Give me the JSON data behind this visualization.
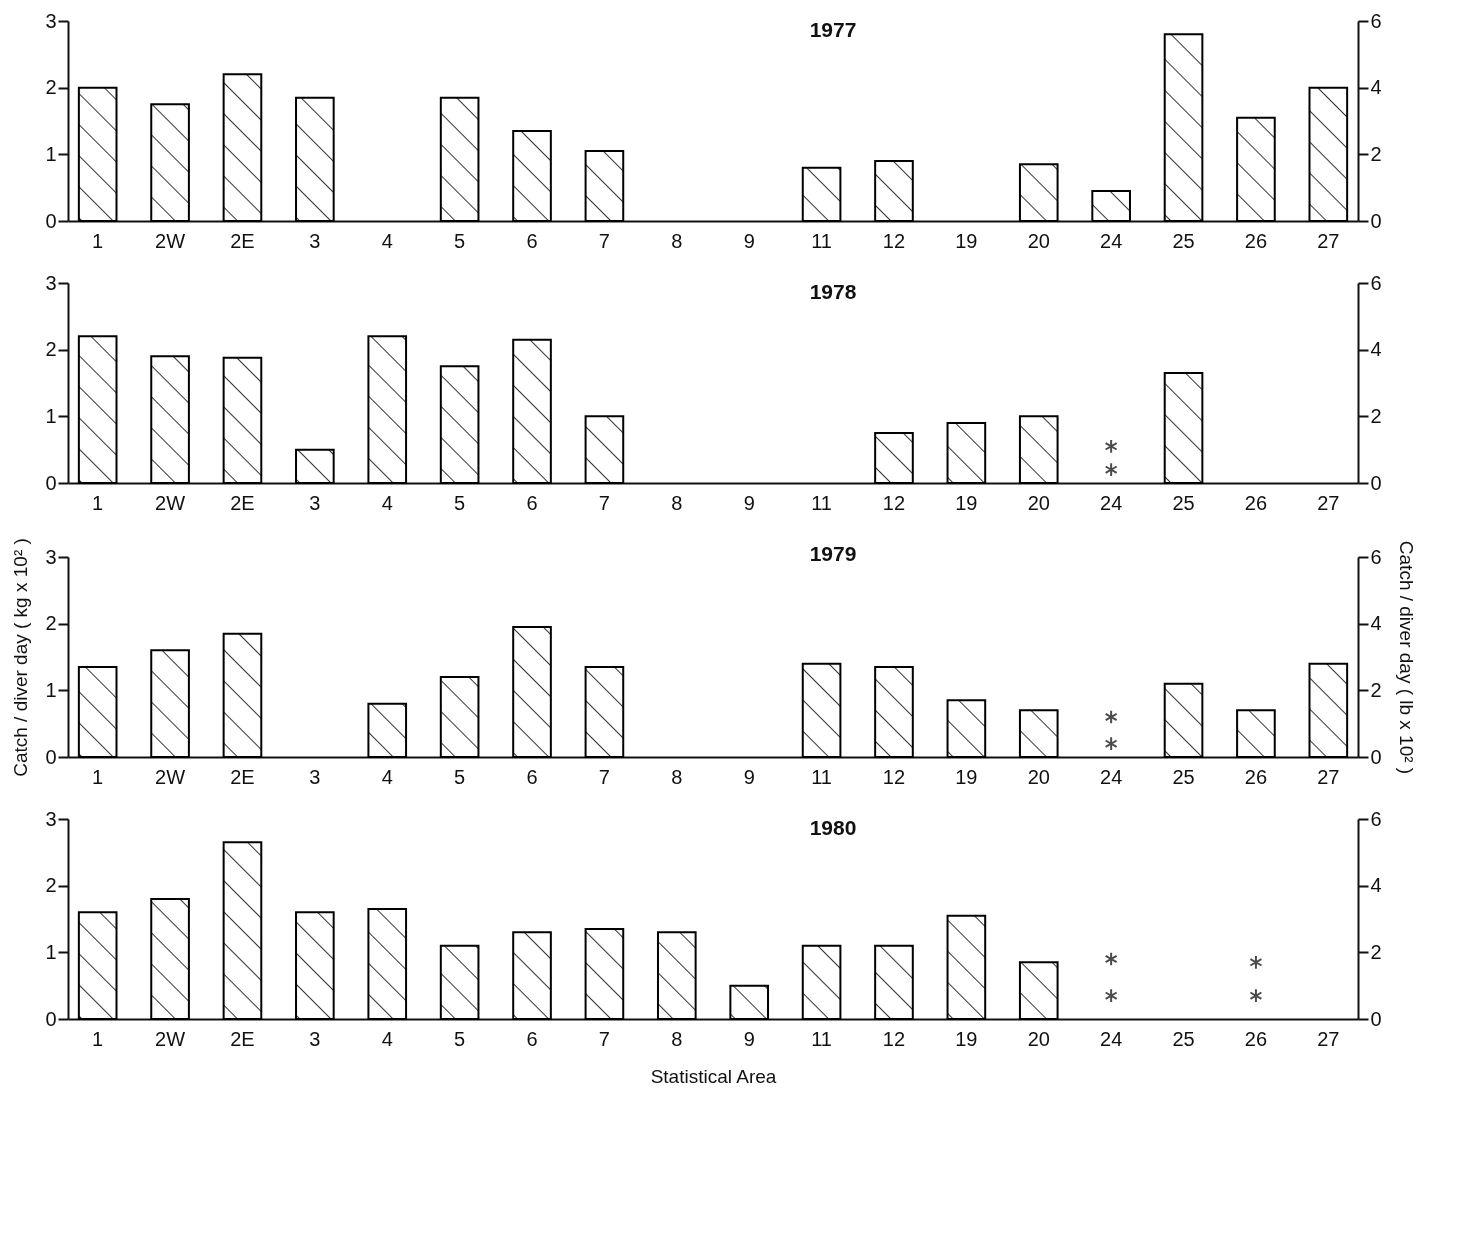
{
  "chart_data": [
    {
      "type": "bar",
      "title": "1977",
      "categories": [
        "1",
        "2W",
        "2E",
        "3",
        "4",
        "5",
        "6",
        "7",
        "8",
        "9",
        "11",
        "12",
        "19",
        "20",
        "24",
        "25",
        "26",
        "27"
      ],
      "series": [
        {
          "color": "#000000",
          "values": [
            2.0,
            1.75,
            2.2,
            1.85,
            null,
            1.85,
            1.35,
            1.05,
            null,
            null,
            0.8,
            0.9,
            null,
            0.85,
            0.45,
            2.8,
            1.55,
            2.0
          ]
        }
      ],
      "ylim": [
        0,
        3
      ],
      "yticks": [
        0,
        1,
        2,
        3
      ],
      "y2lim": [
        0,
        6
      ],
      "y2ticks": [
        0,
        2,
        4,
        6
      ]
    },
    {
      "type": "bar",
      "title": "1978",
      "categories": [
        "1",
        "2W",
        "2E",
        "3",
        "4",
        "5",
        "6",
        "7",
        "8",
        "9",
        "11",
        "12",
        "19",
        "20",
        "24",
        "25",
        "26",
        "27"
      ],
      "series": [
        {
          "color": "#000000",
          "values": [
            2.2,
            1.9,
            1.88,
            0.5,
            2.2,
            1.75,
            2.15,
            1.0,
            null,
            null,
            null,
            0.75,
            0.9,
            1.0,
            null,
            1.65,
            null,
            null
          ]
        },
        {
          "type": "scatter",
          "color": "#000000",
          "marker": "cross",
          "x": [
            "24",
            "24"
          ],
          "values": [
            0.55,
            0.2
          ]
        }
      ],
      "ylim": [
        0,
        3
      ],
      "yticks": [
        0,
        1,
        2,
        3
      ],
      "y2lim": [
        0,
        6
      ],
      "y2ticks": [
        0,
        2,
        4,
        6
      ]
    },
    {
      "type": "bar",
      "title": "1979",
      "categories": [
        "1",
        "2W",
        "2E",
        "3",
        "4",
        "5",
        "6",
        "7",
        "8",
        "9",
        "11",
        "12",
        "19",
        "20",
        "24",
        "25",
        "26",
        "27"
      ],
      "series": [
        {
          "color": "#000000",
          "values": [
            1.35,
            1.6,
            1.85,
            null,
            0.8,
            1.2,
            1.95,
            1.35,
            null,
            null,
            1.4,
            1.35,
            0.85,
            0.7,
            null,
            1.1,
            0.7,
            1.4
          ]
        },
        {
          "type": "scatter",
          "color": "#000000",
          "marker": "cross",
          "x": [
            "24",
            "24"
          ],
          "values": [
            0.6,
            0.2
          ]
        }
      ],
      "ylim": [
        0,
        3
      ],
      "yticks": [
        0,
        1,
        2,
        3
      ],
      "y2lim": [
        0,
        6
      ],
      "y2ticks": [
        0,
        2,
        4,
        6
      ],
      "ylabel": "Catch / diver day  ( kg x 10² )",
      "y2label": "Catch / diver day  ( lb x 10² )"
    },
    {
      "type": "bar",
      "title": "1980",
      "categories": [
        "1",
        "2W",
        "2E",
        "3",
        "4",
        "5",
        "6",
        "7",
        "8",
        "9",
        "11",
        "12",
        "19",
        "20",
        "24",
        "25",
        "26",
        "27"
      ],
      "series": [
        {
          "color": "#000000",
          "values": [
            1.6,
            1.8,
            2.65,
            1.6,
            1.65,
            1.1,
            1.3,
            1.35,
            1.3,
            0.5,
            1.1,
            1.1,
            1.55,
            0.85,
            null,
            null,
            null,
            null
          ]
        },
        {
          "type": "scatter",
          "color": "#000000",
          "marker": "cross",
          "x": [
            "24",
            "24",
            "26",
            "26"
          ],
          "values": [
            0.9,
            0.35,
            0.85,
            0.35
          ]
        }
      ],
      "ylim": [
        0,
        3
      ],
      "yticks": [
        0,
        1,
        2,
        3
      ],
      "y2lim": [
        0,
        6
      ],
      "y2ticks": [
        0,
        2,
        4,
        6
      ],
      "xlabel": "Statistical Area"
    }
  ]
}
